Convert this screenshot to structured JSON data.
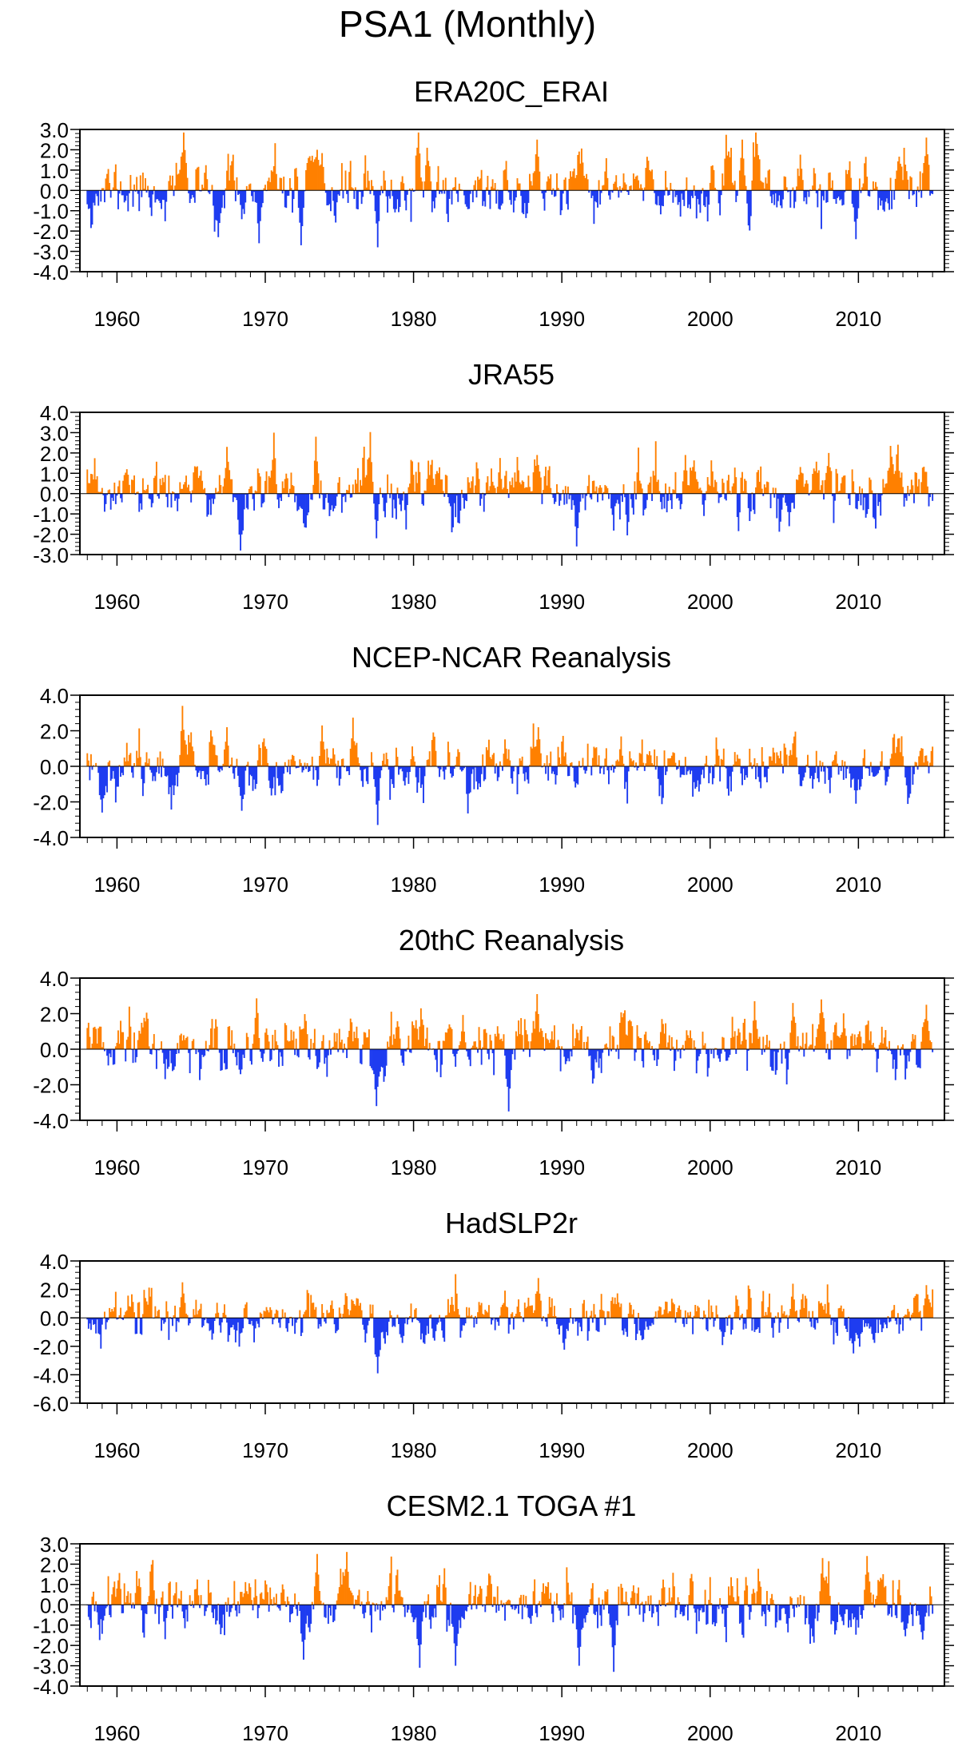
{
  "title": "PSA1 (Monthly)",
  "colors": {
    "positive": "#FF8000",
    "negative": "#1E3CF0",
    "axis": "#000000"
  },
  "chart_data": [
    {
      "type": "bar",
      "title": "ERA20C_ERAI",
      "x_start": 1958.0,
      "x_end": 2015.0,
      "x_step_months": 1,
      "xlim": [
        1957.5,
        2015.8
      ],
      "xticks": [
        1960,
        1970,
        1980,
        1990,
        2000,
        2010
      ],
      "xtick_labels": [
        "1960",
        "1970",
        "1980",
        "1990",
        "2000",
        "2010"
      ],
      "ylim": [
        -4.0,
        3.0
      ],
      "yticks": [
        3.0,
        2.0,
        1.0,
        0.0,
        -1.0,
        -2.0,
        -3.0,
        -4.0
      ],
      "ytick_labels": [
        "3.0",
        "2.0",
        "1.0",
        "0.0",
        "-1.0",
        "-2.0",
        "-3.0",
        "-4.0"
      ],
      "seed": 11,
      "amp": 0.75,
      "events": [
        {
          "year": 1964.5,
          "value": 2.9
        },
        {
          "year": 1966.8,
          "value": -2.3
        },
        {
          "year": 1969.6,
          "value": -2.6
        },
        {
          "year": 1972.4,
          "value": -2.7
        },
        {
          "year": 1973.5,
          "value": 2.0
        },
        {
          "year": 1977.6,
          "value": -2.8
        },
        {
          "year": 1980.9,
          "value": 2.1
        },
        {
          "year": 1988.3,
          "value": 2.5
        },
        {
          "year": 2002.2,
          "value": 2.5
        },
        {
          "year": 2009.8,
          "value": -2.4
        },
        {
          "year": 2014.6,
          "value": 2.6
        }
      ]
    },
    {
      "type": "bar",
      "title": "JRA55",
      "x_start": 1958.0,
      "x_end": 2015.0,
      "x_step_months": 1,
      "xlim": [
        1957.5,
        2015.8
      ],
      "xticks": [
        1960,
        1970,
        1980,
        1990,
        2000,
        2010
      ],
      "xtick_labels": [
        "1960",
        "1970",
        "1980",
        "1990",
        "2000",
        "2010"
      ],
      "ylim": [
        -3.0,
        4.0
      ],
      "yticks": [
        4.0,
        3.0,
        2.0,
        1.0,
        0.0,
        -1.0,
        -2.0,
        -3.0
      ],
      "ytick_labels": [
        "4.0",
        "3.0",
        "2.0",
        "1.0",
        "0.0",
        "-1.0",
        "-2.0",
        "-3.0"
      ],
      "seed": 23,
      "amp": 0.75,
      "events": [
        {
          "year": 1967.4,
          "value": 2.3
        },
        {
          "year": 1968.3,
          "value": -2.8
        },
        {
          "year": 1970.6,
          "value": 3.0
        },
        {
          "year": 1973.4,
          "value": 2.8
        },
        {
          "year": 1977.5,
          "value": -2.2
        },
        {
          "year": 1988.3,
          "value": 1.9
        },
        {
          "year": 1991.0,
          "value": -2.6
        },
        {
          "year": 1998.3,
          "value": 1.9
        },
        {
          "year": 2008.0,
          "value": 2.0
        }
      ]
    },
    {
      "type": "bar",
      "title": "NCEP-NCAR Reanalysis",
      "x_start": 1958.0,
      "x_end": 2015.0,
      "x_step_months": 1,
      "xlim": [
        1957.5,
        2015.8
      ],
      "xticks": [
        1960,
        1970,
        1980,
        1990,
        2000,
        2010
      ],
      "xtick_labels": [
        "1960",
        "1970",
        "1980",
        "1990",
        "2000",
        "2010"
      ],
      "ylim": [
        -4.0,
        4.0
      ],
      "yticks": [
        4.0,
        2.0,
        0.0,
        -2.0,
        -4.0
      ],
      "ytick_labels": [
        "4.0",
        "2.0",
        "0.0",
        "-2.0",
        "-4.0"
      ],
      "seed": 37,
      "amp": 0.8,
      "events": [
        {
          "year": 1959.0,
          "value": -2.6
        },
        {
          "year": 1964.4,
          "value": 3.4
        },
        {
          "year": 1967.4,
          "value": 2.2
        },
        {
          "year": 1968.4,
          "value": -2.5
        },
        {
          "year": 1973.8,
          "value": 2.3
        },
        {
          "year": 1977.6,
          "value": -3.3
        },
        {
          "year": 1988.4,
          "value": 2.2
        },
        {
          "year": 2009.8,
          "value": -2.1
        }
      ]
    },
    {
      "type": "bar",
      "title": "20thC Reanalysis",
      "x_start": 1958.0,
      "x_end": 2015.0,
      "x_step_months": 1,
      "xlim": [
        1957.5,
        2015.8
      ],
      "xticks": [
        1960,
        1970,
        1980,
        1990,
        2000,
        2010
      ],
      "xtick_labels": [
        "1960",
        "1970",
        "1980",
        "1990",
        "2000",
        "2010"
      ],
      "ylim": [
        -4.0,
        4.0
      ],
      "yticks": [
        4.0,
        2.0,
        0.0,
        -2.0,
        -4.0
      ],
      "ytick_labels": [
        "4.0",
        "2.0",
        "0.0",
        "-2.0",
        "-4.0"
      ],
      "seed": 51,
      "amp": 0.85,
      "events": [
        {
          "year": 1977.5,
          "value": -3.2
        },
        {
          "year": 1980.5,
          "value": 2.3
        },
        {
          "year": 1986.4,
          "value": -3.5
        },
        {
          "year": 1988.3,
          "value": 3.1
        },
        {
          "year": 2003.0,
          "value": 2.7
        },
        {
          "year": 2005.6,
          "value": 2.6
        },
        {
          "year": 2007.5,
          "value": 2.8
        },
        {
          "year": 2014.6,
          "value": 2.5
        }
      ]
    },
    {
      "type": "bar",
      "title": "HadSLP2r",
      "x_start": 1958.0,
      "x_end": 2015.0,
      "x_step_months": 1,
      "xlim": [
        1957.5,
        2015.8
      ],
      "xticks": [
        1960,
        1970,
        1980,
        1990,
        2000,
        2010
      ],
      "xtick_labels": [
        "1960",
        "1970",
        "1980",
        "1990",
        "2000",
        "2010"
      ],
      "ylim": [
        -6.0,
        4.0
      ],
      "yticks": [
        4.0,
        2.0,
        0.0,
        -2.0,
        -4.0,
        -6.0
      ],
      "ytick_labels": [
        "4.0",
        "2.0",
        "0.0",
        "-2.0",
        "-4.0",
        "-6.0"
      ],
      "seed": 67,
      "amp": 0.85,
      "events": [
        {
          "year": 1964.4,
          "value": 2.5
        },
        {
          "year": 1977.6,
          "value": -3.9
        },
        {
          "year": 1988.4,
          "value": 2.8
        },
        {
          "year": 2005.6,
          "value": 2.4
        },
        {
          "year": 2009.7,
          "value": -2.5
        },
        {
          "year": 2014.6,
          "value": 2.3
        }
      ]
    },
    {
      "type": "bar",
      "title": "CESM2.1 TOGA #1",
      "x_start": 1958.0,
      "x_end": 2015.0,
      "x_step_months": 1,
      "xlim": [
        1957.5,
        2015.8
      ],
      "xticks": [
        1960,
        1970,
        1980,
        1990,
        2000,
        2010
      ],
      "xtick_labels": [
        "1960",
        "1970",
        "1980",
        "1990",
        "2000",
        "2010"
      ],
      "ylim": [
        -4.0,
        3.0
      ],
      "yticks": [
        3.0,
        2.0,
        1.0,
        0.0,
        -1.0,
        -2.0,
        -3.0,
        -4.0
      ],
      "ytick_labels": [
        "3.0",
        "2.0",
        "1.0",
        "0.0",
        "-1.0",
        "-2.0",
        "-3.0",
        "-4.0"
      ],
      "seed": 83,
      "amp": 0.8,
      "events": [
        {
          "year": 1972.6,
          "value": -2.7
        },
        {
          "year": 1973.5,
          "value": 2.5
        },
        {
          "year": 1975.5,
          "value": 2.6
        },
        {
          "year": 1980.4,
          "value": -3.1
        },
        {
          "year": 1982.8,
          "value": -3.0
        },
        {
          "year": 1991.2,
          "value": -3.0
        },
        {
          "year": 1993.5,
          "value": -3.3
        },
        {
          "year": 2007.6,
          "value": 2.3
        },
        {
          "year": 2010.6,
          "value": 2.4
        }
      ]
    }
  ]
}
